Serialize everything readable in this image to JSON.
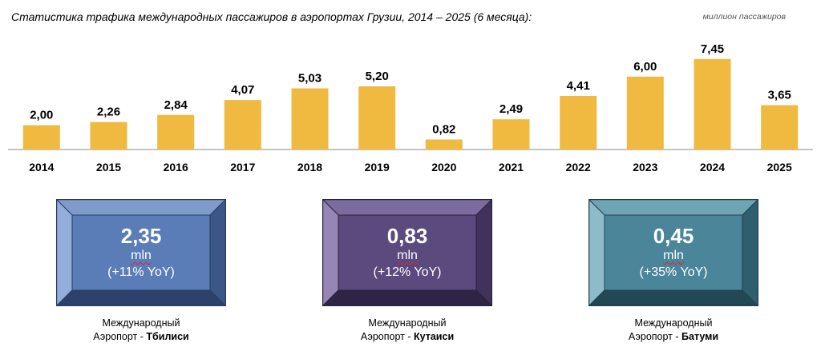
{
  "chart_data": {
    "type": "bar",
    "title": "Статистика трафика международных пассажиров в аэропортах Грузии, 2014 – 2025 (6 месяца):",
    "unit": "миллион пассажиров",
    "categories": [
      "2014",
      "2015",
      "2016",
      "2017",
      "2018",
      "2019",
      "2020",
      "2021",
      "2022",
      "2023",
      "2024",
      "2025"
    ],
    "values": [
      2.0,
      2.26,
      2.84,
      4.07,
      5.03,
      5.2,
      0.82,
      2.49,
      4.41,
      6.0,
      7.45,
      3.65
    ],
    "value_labels": [
      "2,00",
      "2,26",
      "2,84",
      "4,07",
      "5,03",
      "5,20",
      "0,82",
      "2,49",
      "4,41",
      "6,00",
      "7,45",
      "3,65"
    ],
    "ylim": [
      0,
      8
    ],
    "bar_color": "#F0B940",
    "grid": false
  },
  "cards": [
    {
      "value": "2,35",
      "unit": "mln",
      "yoy": "(+11% YoY)",
      "caption_line1": "Международный",
      "caption_prefix": "Аэропорт - ",
      "caption_airport": "Тбилиси",
      "colors": {
        "face": "#5A7DB8",
        "top": "#7E9BCC",
        "left": "#93AEDA",
        "right": "#3C5787",
        "bottom": "#2C426A",
        "border": "#2A3D60"
      }
    },
    {
      "value": "0,83",
      "unit": "mln",
      "yoy": "(+12% YoY)",
      "caption_line1": "Международный",
      "caption_prefix": "Аэропорт - ",
      "caption_airport": "Кутаиси",
      "colors": {
        "face": "#5B4A7E",
        "top": "#7C6B9E",
        "left": "#9686B5",
        "right": "#3F325B",
        "bottom": "#2E2445",
        "border": "#2B2240"
      }
    },
    {
      "value": "0,45",
      "unit": "mln",
      "yoy": "(+35% YoY)",
      "caption_line1": "Международный",
      "caption_prefix": "Аэропорт - ",
      "caption_airport": "Батуми",
      "colors": {
        "face": "#4A8599",
        "top": "#6FA4B5",
        "left": "#8DBBC9",
        "right": "#2F5E6E",
        "bottom": "#234855",
        "border": "#21404C"
      }
    }
  ]
}
